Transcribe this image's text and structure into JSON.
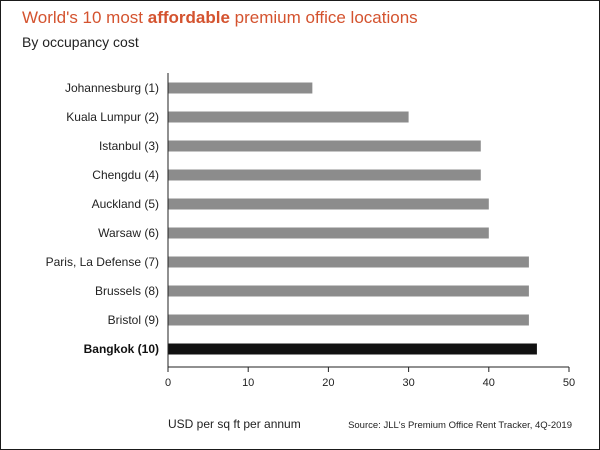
{
  "header": {
    "title_prefix": "World's 10 most ",
    "title_emphasis": "affordable",
    "title_suffix": " premium office locations",
    "subtitle": "By occupancy cost"
  },
  "footer": {
    "source": "Source: JLL's Premium Office Rent Tracker, 4Q-2019"
  },
  "colors": {
    "title": "#d4532f",
    "bar": "#8c8c8c",
    "highlight_bar": "#111111",
    "axis": "#222222"
  },
  "chart_data": {
    "type": "bar",
    "orientation": "horizontal",
    "title": "World's 10 most affordable premium office locations",
    "subtitle": "By occupancy cost",
    "xlabel": "USD per sq ft per annum",
    "ylabel": "",
    "xlim": [
      0,
      50
    ],
    "xticks": [
      "0",
      "10",
      "20",
      "30",
      "40",
      "50"
    ],
    "grid": false,
    "categories": [
      "Johannesburg (1)",
      "Kuala Lumpur (2)",
      "Istanbul (3)",
      "Chengdu (4)",
      "Auckland (5)",
      "Warsaw (6)",
      "Paris, La Defense (7)",
      "Brussels (8)",
      "Bristol (9)",
      "Bangkok (10)"
    ],
    "values": [
      18,
      30,
      39,
      39,
      40,
      40,
      45,
      45,
      45,
      46
    ],
    "highlight": "Bangkok (10)"
  }
}
